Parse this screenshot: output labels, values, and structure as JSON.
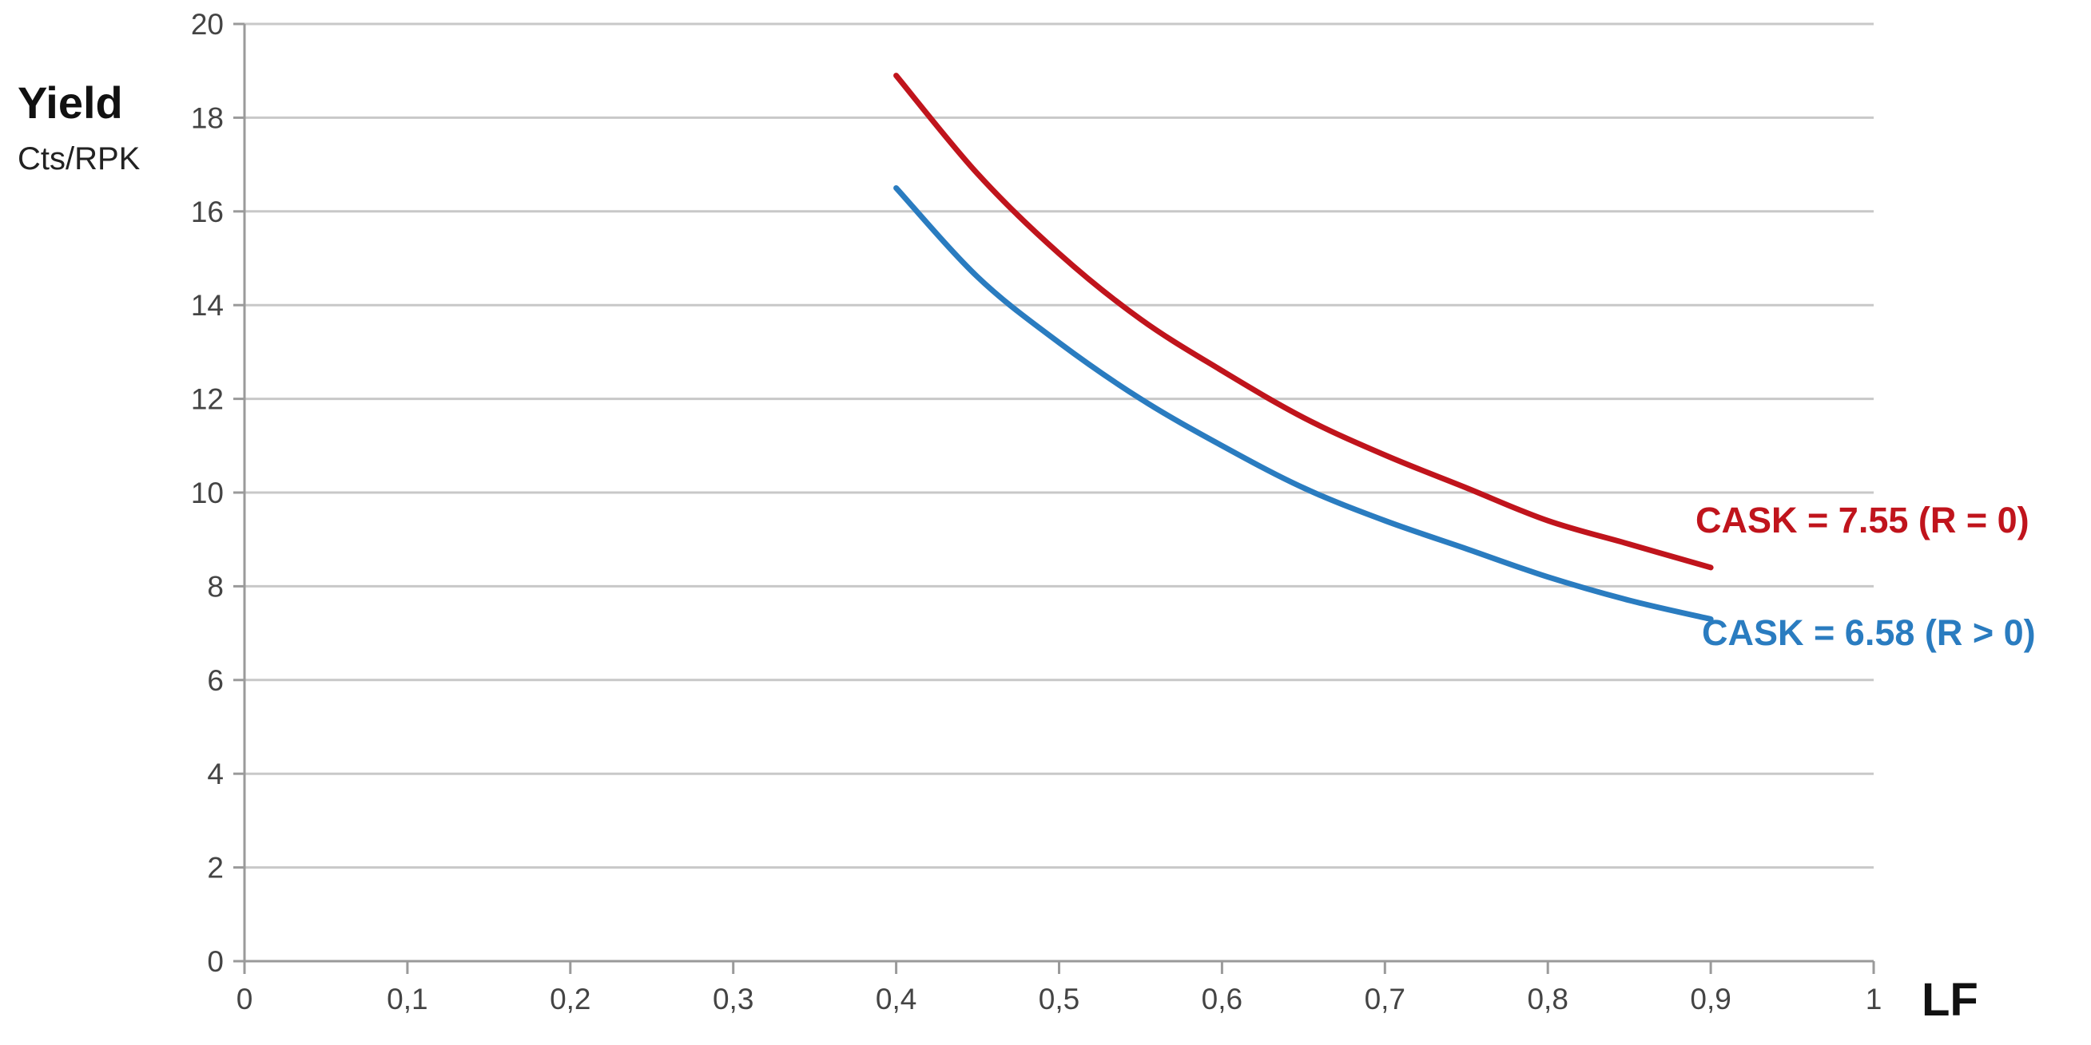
{
  "chart_data": {
    "type": "line",
    "ylabel": "Yield",
    "ylabel_unit": "Cts/RPK",
    "xlabel": "LF",
    "xlim": [
      0,
      1
    ],
    "ylim": [
      0,
      20
    ],
    "grid": true,
    "x_ticks": [
      "0",
      "0,1",
      "0,2",
      "0,3",
      "0,4",
      "0,5",
      "0,6",
      "0,7",
      "0,8",
      "0,9",
      "1"
    ],
    "y_ticks": [
      "0",
      "2",
      "4",
      "6",
      "8",
      "10",
      "12",
      "14",
      "16",
      "18",
      "20"
    ],
    "series": [
      {
        "name": "CASK = 7.55 (R = 0)",
        "color": "#c0141c",
        "x": [
          0.4,
          0.45,
          0.5,
          0.55,
          0.6,
          0.65,
          0.7,
          0.75,
          0.8,
          0.85,
          0.9
        ],
        "y": [
          18.9,
          16.8,
          15.1,
          13.7,
          12.6,
          11.6,
          10.8,
          10.1,
          9.4,
          8.9,
          8.4
        ]
      },
      {
        "name": "CASK = 6.58 (R > 0)",
        "color": "#2a7cc0",
        "x": [
          0.4,
          0.45,
          0.5,
          0.55,
          0.6,
          0.65,
          0.7,
          0.75,
          0.8,
          0.85,
          0.9
        ],
        "y": [
          16.5,
          14.6,
          13.2,
          12.0,
          11.0,
          10.1,
          9.4,
          8.8,
          8.2,
          7.7,
          7.3
        ]
      }
    ]
  }
}
